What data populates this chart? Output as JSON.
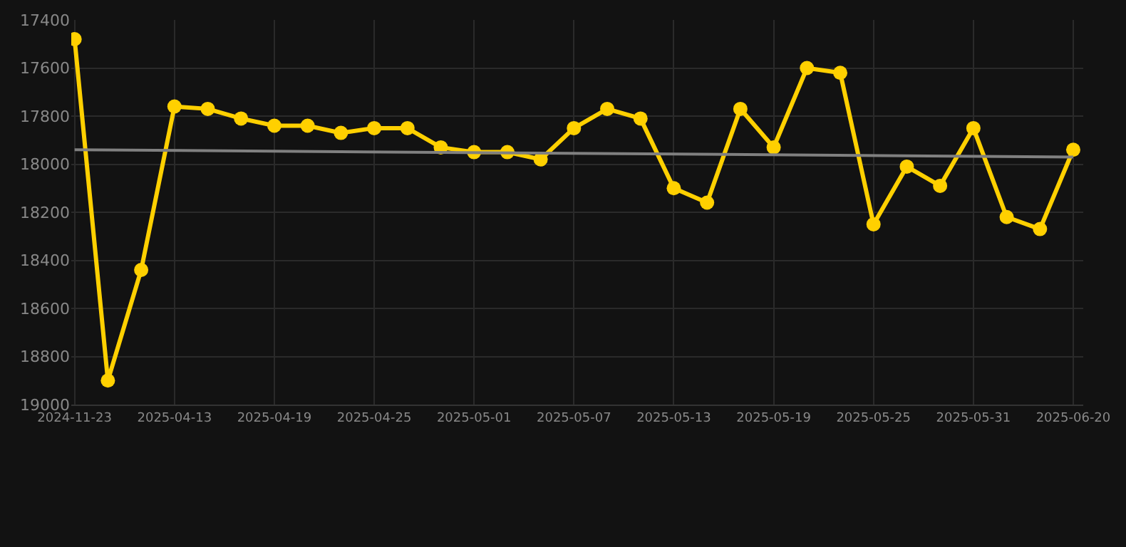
{
  "chart_data": {
    "type": "line",
    "categories": [
      "2024-11-23",
      null,
      null,
      "2025-04-13",
      null,
      null,
      "2025-04-19",
      null,
      null,
      "2025-04-25",
      null,
      null,
      "2025-05-01",
      null,
      null,
      "2025-05-07",
      null,
      null,
      "2025-05-13",
      null,
      null,
      "2025-05-19",
      null,
      null,
      "2025-05-25",
      null,
      null,
      "2025-05-31",
      null,
      null,
      "2025-06-20"
    ],
    "series": [
      {
        "color": "#ffd000",
        "marker": "circle",
        "values": [
          17480,
          18900,
          18440,
          17760,
          17770,
          17810,
          17840,
          17840,
          17870,
          17850,
          17850,
          17930,
          17950,
          17950,
          17980,
          17850,
          17770,
          17810,
          18100,
          18160,
          17770,
          17930,
          17600,
          17620,
          18250,
          18010,
          18090,
          17850,
          18220,
          18270,
          17940
        ]
      },
      {
        "color": "#808080",
        "marker": "none",
        "values": [
          17940,
          null,
          null,
          null,
          null,
          null,
          null,
          null,
          null,
          null,
          null,
          null,
          null,
          null,
          null,
          null,
          null,
          null,
          null,
          null,
          null,
          null,
          null,
          null,
          null,
          null,
          null,
          null,
          null,
          null,
          17970
        ]
      }
    ],
    "ylim": [
      19000,
      17400
    ],
    "yticks": [
      17400,
      17600,
      17800,
      18000,
      18200,
      18400,
      18600,
      18800,
      19000
    ],
    "grid": true
  }
}
